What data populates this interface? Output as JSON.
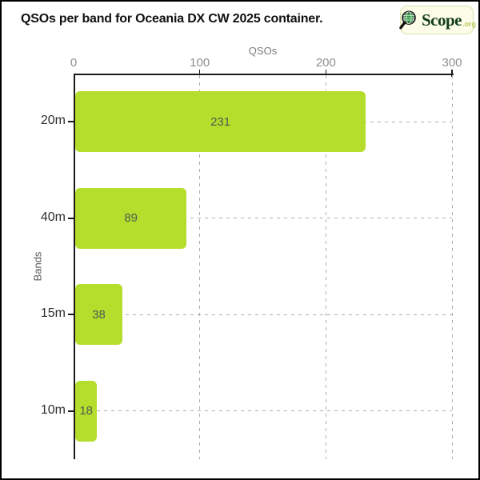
{
  "title": "QSOs per band for Oceania DX CW 2025 container.",
  "logo": {
    "icon": "magnifier-globe-icon",
    "brand": "Scope",
    "tld": ".org",
    "background": "#fcfce9",
    "border_color": "#d9e4a6",
    "brand_color": "#123d18",
    "tld_color": "#b9cb5b"
  },
  "colors": {
    "bar": "#b5dd2c",
    "value_label": "#4a5f50",
    "axis": "#1a1a1a",
    "grid": "#ababab",
    "tick_label": "#8f8f8f",
    "axis_title": "#7c7c7c",
    "band_label": "#2e2e2e"
  },
  "chart_data": {
    "type": "bar",
    "orientation": "horizontal",
    "title": "QSOs per band for Oceania DX CW 2025 container.",
    "xlabel": "QSOs",
    "ylabel": "Bands",
    "categories": [
      "20m",
      "40m",
      "15m",
      "10m"
    ],
    "values": [
      231,
      89,
      38,
      18
    ],
    "xlim": [
      0,
      300
    ],
    "xticks": [
      0,
      100,
      200,
      300
    ],
    "grid": "dashed",
    "legend": "none",
    "bar_color": "#b5dd2c"
  }
}
